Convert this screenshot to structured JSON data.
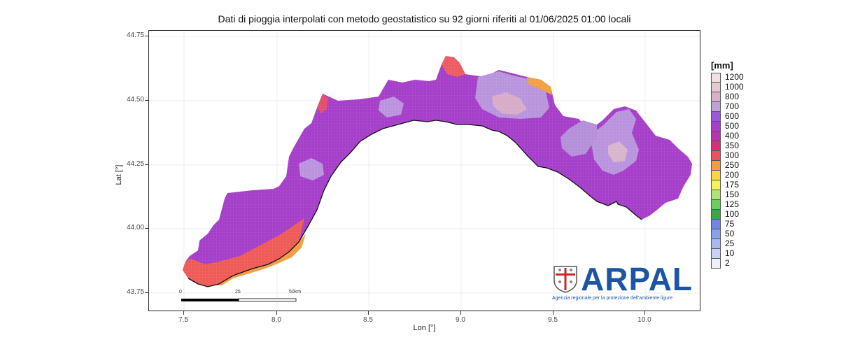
{
  "title": "Dati di pioggia interpolati con metodo geostatistico su 92 giorni riferiti al 01/06/2025 01:00 locali",
  "axes": {
    "xlabel": "Lon [°]",
    "ylabel": "Lat [°]",
    "xticks": [
      "7.5",
      "8.0",
      "8.5",
      "9.0",
      "9.5",
      "10.0"
    ],
    "yticks": [
      "44.75",
      "44.50",
      "44.25",
      "44.00",
      "43.75"
    ]
  },
  "legend": {
    "title": "[mm]",
    "items": [
      {
        "label": "1200",
        "color": "#f1dfe6"
      },
      {
        "label": "1000",
        "color": "#e6c7d3"
      },
      {
        "label": "800",
        "color": "#d8b0c8"
      },
      {
        "label": "700",
        "color": "#bf9fdc"
      },
      {
        "label": "600",
        "color": "#9a5ad6"
      },
      {
        "label": "500",
        "color": "#a43fd0"
      },
      {
        "label": "400",
        "color": "#b834b0"
      },
      {
        "label": "350",
        "color": "#d43276"
      },
      {
        "label": "300",
        "color": "#ee5060"
      },
      {
        "label": "250",
        "color": "#f39b45"
      },
      {
        "label": "200",
        "color": "#f8d63c"
      },
      {
        "label": "175",
        "color": "#f4f25a"
      },
      {
        "label": "150",
        "color": "#aee37a"
      },
      {
        "label": "125",
        "color": "#6ccf5a"
      },
      {
        "label": "100",
        "color": "#34a84a"
      },
      {
        "label": "75",
        "color": "#6f86e4"
      },
      {
        "label": "50",
        "color": "#8ba0ea"
      },
      {
        "label": "25",
        "color": "#a9b8ef"
      },
      {
        "label": "10",
        "color": "#c7d2f4"
      },
      {
        "label": "2",
        "color": "#eef1fb"
      }
    ]
  },
  "scale_bar": {
    "labels": [
      "0",
      "25",
      "50km"
    ]
  },
  "logo": {
    "name": "ARPAL",
    "subtitle": "Agenzia regionale per la protezione dell'ambiente ligure"
  }
}
